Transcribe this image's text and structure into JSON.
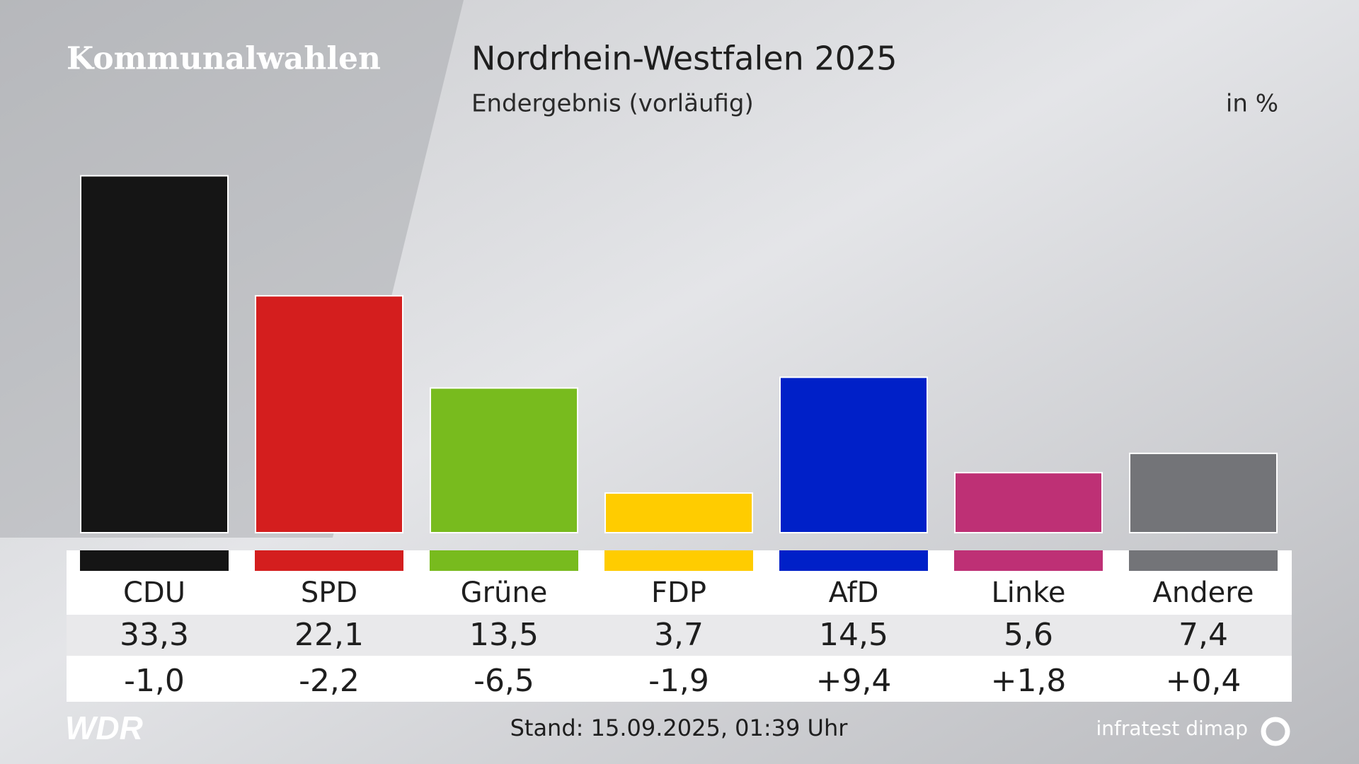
{
  "chart_data": {
    "type": "bar",
    "header": "Kommunalwahlen",
    "title": "Nordrhein-Westfalen 2025",
    "subtitle": "Endergebnis (vorläufig)",
    "unit": "in %",
    "categories": [
      "CDU",
      "SPD",
      "Grüne",
      "FDP",
      "AfD",
      "Linke",
      "Andere"
    ],
    "values": [
      33.3,
      22.1,
      13.5,
      3.7,
      14.5,
      5.6,
      7.4
    ],
    "value_labels": [
      "33,3",
      "22,1",
      "13,5",
      "3,7",
      "14,5",
      "5,6",
      "7,4"
    ],
    "changes": [
      -1.0,
      -2.2,
      -6.5,
      -1.9,
      9.4,
      1.8,
      0.4
    ],
    "change_labels": [
      "-1,0",
      "-2,2",
      "-6,5",
      "-1,9",
      "+9,4",
      "+1,8",
      "+0,4"
    ],
    "colors": [
      "#151515",
      "#d41e1e",
      "#78bb1e",
      "#ffcc00",
      "#0020c8",
      "#be3075",
      "#737478"
    ],
    "footer": "Stand: 15.09.2025, 01:39 Uhr",
    "broadcaster": "WDR",
    "source": "infratest dimap"
  }
}
